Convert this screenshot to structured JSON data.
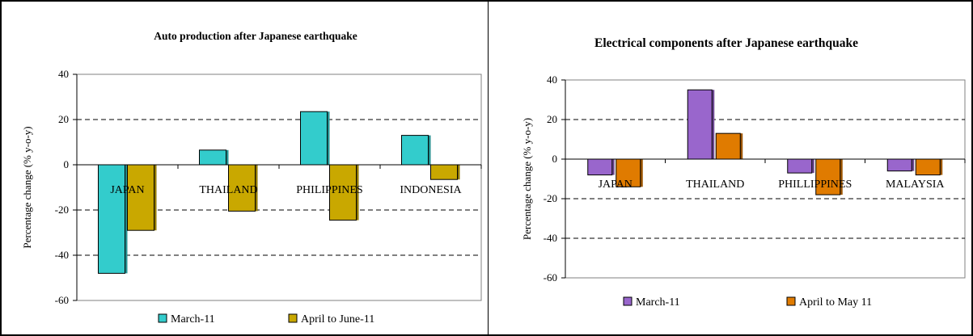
{
  "chart_data": [
    {
      "type": "bar",
      "title": "Auto production after Japanese earthquake",
      "ylabel": "Percentage change (% y-o-y)",
      "xlabel": "",
      "ylim": [
        -60,
        40
      ],
      "yticks": [
        40,
        20,
        0,
        -20,
        -40,
        -60
      ],
      "grid": "dashed horizontal",
      "legend_position": "bottom",
      "categories": [
        "JAPAN",
        "THAILAND",
        "PHILIPPINES",
        "INDONESIA"
      ],
      "series": [
        {
          "name": "March-11",
          "values": [
            -48,
            6.5,
            23.5,
            13
          ],
          "color": "#33cccc"
        },
        {
          "name": "April to June-11",
          "values": [
            -29,
            -20.5,
            -24.5,
            -6.5
          ],
          "color": "#c9a800"
        }
      ],
      "plot_background": "#ffffff"
    },
    {
      "type": "bar",
      "title": "Electrical components after Japanese earthquake",
      "ylabel": "Percentage change (% y-o-y)",
      "xlabel": "",
      "ylim": [
        -60,
        40
      ],
      "yticks": [
        40,
        20,
        0,
        -20,
        -40,
        -60
      ],
      "grid": "dashed horizontal",
      "legend_position": "bottom",
      "categories": [
        "JAPAN",
        "THAILAND",
        "PHILLIPPINES",
        "MALAYSIA"
      ],
      "series": [
        {
          "name": "March-11",
          "values": [
            -8,
            35,
            -7,
            -6
          ],
          "color": "#9966cc"
        },
        {
          "name": "April to May 11",
          "values": [
            -14,
            13,
            -18,
            -8
          ],
          "color": "#e07b00"
        }
      ],
      "plot_background": "#ffffff"
    }
  ]
}
